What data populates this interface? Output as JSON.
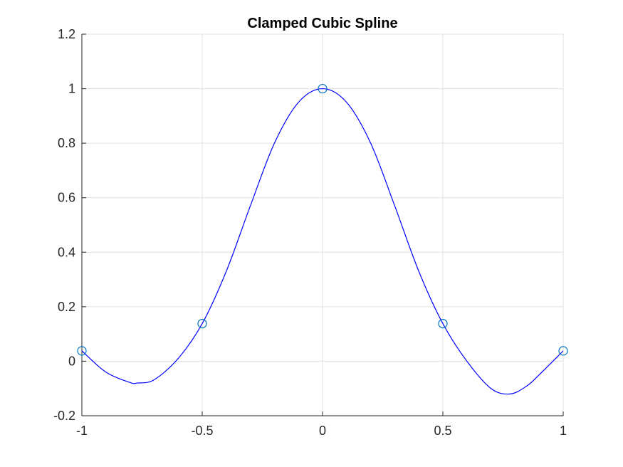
{
  "chart_data": {
    "type": "line",
    "title": "Clamped Cubic Spline",
    "xlabel": "",
    "ylabel": "",
    "xlim": [
      -1,
      1
    ],
    "ylim": [
      -0.2,
      1.2
    ],
    "grid": true,
    "x_ticks": [
      -1,
      -0.5,
      0,
      0.5,
      1
    ],
    "x_tick_labels": [
      "-1",
      "-0.5",
      "0",
      "0.5",
      "1"
    ],
    "y_ticks": [
      -0.2,
      0,
      0.2,
      0.4,
      0.6,
      0.8,
      1,
      1.2
    ],
    "y_tick_labels": [
      "-0.2",
      "0",
      "0.2",
      "0.4",
      "0.6",
      "0.8",
      "1",
      "1.2"
    ],
    "series": [
      {
        "kind": "line",
        "color": "#0000ff",
        "x": [
          -1,
          -0.9,
          -0.8,
          -0.77,
          -0.7,
          -0.6,
          -0.5,
          -0.4,
          -0.3,
          -0.2,
          -0.1,
          0,
          0.1,
          0.2,
          0.3,
          0.4,
          0.5,
          0.6,
          0.7,
          0.78,
          0.85,
          0.9,
          1
        ],
        "y": [
          0.038,
          -0.04,
          -0.078,
          -0.08,
          -0.068,
          0.01,
          0.138,
          0.33,
          0.57,
          0.8,
          0.95,
          1.0,
          0.95,
          0.8,
          0.57,
          0.33,
          0.138,
          0.0,
          -0.1,
          -0.12,
          -0.09,
          -0.05,
          0.038
        ]
      },
      {
        "kind": "markers",
        "marker": "circle",
        "color": "#0072bd",
        "x": [
          -1,
          -0.5,
          0,
          0.5,
          1
        ],
        "y": [
          0.038,
          0.138,
          1.0,
          0.138,
          0.038
        ]
      }
    ]
  }
}
